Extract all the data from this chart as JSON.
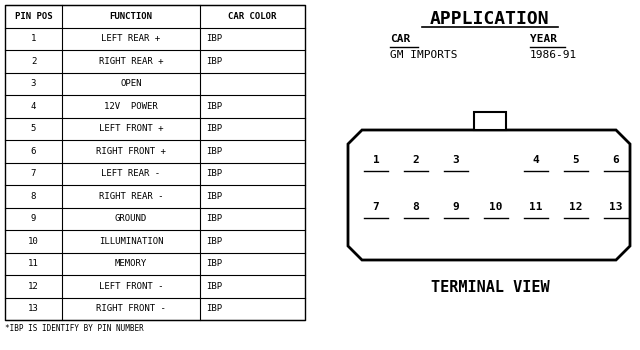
{
  "bg_color": "#ffffff",
  "table_headers": [
    "PIN POS",
    "FUNCTION",
    "CAR COLOR"
  ],
  "rows": [
    [
      "1",
      "LEFT REAR +",
      "IBP"
    ],
    [
      "2",
      "RIGHT REAR +",
      "IBP"
    ],
    [
      "3",
      "OPEN",
      ""
    ],
    [
      "4",
      "12V  POWER",
      "IBP"
    ],
    [
      "5",
      "LEFT FRONT +",
      "IBP"
    ],
    [
      "6",
      "RIGHT FRONT +",
      "IBP"
    ],
    [
      "7",
      "LEFT REAR -",
      "IBP"
    ],
    [
      "8",
      "RIGHT REAR -",
      "IBP"
    ],
    [
      "9",
      "GROUND",
      "IBP"
    ],
    [
      "10",
      "ILLUMINATION",
      "IBP"
    ],
    [
      "11",
      "MEMORY",
      "IBP"
    ],
    [
      "12",
      "LEFT FRONT -",
      "IBP"
    ],
    [
      "13",
      "RIGHT FRONT -",
      "IBP"
    ]
  ],
  "footnote": "*IBP IS IDENTIFY BY PIN NUMBER",
  "app_title": "APPLICATION",
  "car_label": "CAR",
  "year_label": "YEAR",
  "car_value": "GM IMPORTS",
  "year_value": "1986-91",
  "terminal_label": "TERMINAL VIEW",
  "row1_labels": [
    "1",
    "2",
    "3",
    null,
    "4",
    "5",
    "6"
  ],
  "row2_labels": [
    "7",
    "8",
    "9",
    "10",
    "11",
    "12",
    "13"
  ]
}
